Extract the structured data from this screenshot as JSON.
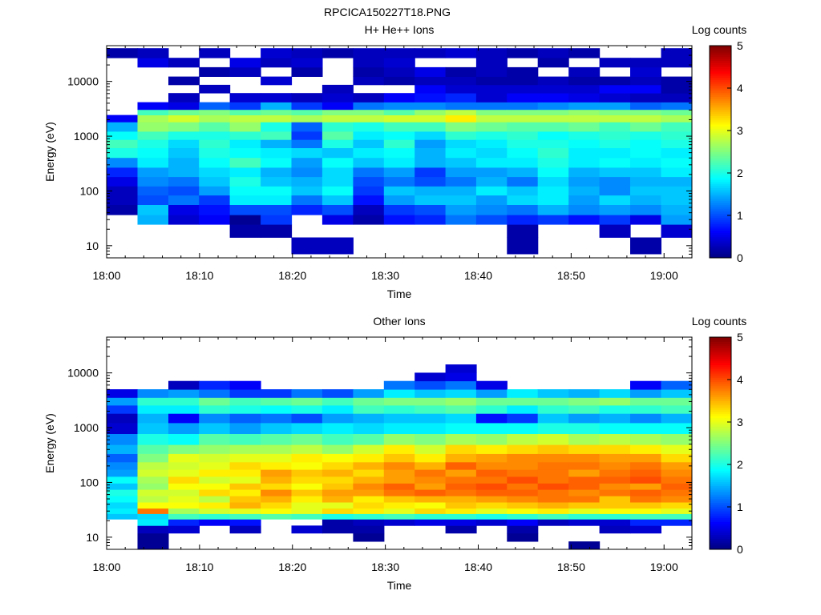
{
  "figure_title": "RPCICA150227T18.PNG",
  "chart_data": [
    {
      "type": "heatmap",
      "title": "H+ He++ Ions",
      "xlabel": "Time",
      "ylabel": "Energy (eV)",
      "x_ticks": [
        "18:00",
        "18:10",
        "18:20",
        "18:30",
        "18:40",
        "18:50",
        "19:00"
      ],
      "y_ticks": [
        "10",
        "100",
        "1000",
        "10000"
      ],
      "yscale": "log",
      "ylim": [
        6,
        45000
      ],
      "xlim": [
        "18:00",
        "19:03"
      ],
      "colorbar": {
        "label": "Log counts",
        "ticks": [
          "0",
          "1",
          "2",
          "3",
          "4",
          "5"
        ],
        "range": [
          0,
          5
        ]
      },
      "times": [
        "18:01:40",
        "18:04:59",
        "18:08:18",
        "18:11:36",
        "18:14:55",
        "18:18:14",
        "18:21:33",
        "18:24:52",
        "18:28:11",
        "18:31:30",
        "18:34:49",
        "18:38:08",
        "18:41:26",
        "18:44:45",
        "18:48:04",
        "18:51:23",
        "18:54:42",
        "18:58:01",
        "19:01:20"
      ],
      "energy_bands_eV": [
        10,
        20,
        30,
        45,
        70,
        100,
        150,
        220,
        330,
        500,
        750,
        1000,
        1500,
        2200,
        2700,
        3500,
        5000,
        7500,
        10000,
        15000,
        22000,
        33000
      ],
      "log_counts": [
        [
          null,
          null,
          null,
          0.2,
          0.3,
          0.3,
          0.5,
          0.8,
          1.3,
          2.0,
          2.2,
          1.9,
          1.5,
          0.6,
          null,
          null,
          null,
          null,
          null,
          null,
          null,
          0.2
        ],
        [
          null,
          null,
          1.5,
          1.6,
          1.0,
          1.1,
          1.3,
          1.4,
          1.8,
          1.9,
          2.0,
          2.2,
          2.6,
          2.7,
          2.2,
          0.6,
          null,
          null,
          null,
          null,
          0.5,
          0.3
        ],
        [
          null,
          null,
          0.4,
          0.5,
          1.2,
          1.0,
          1.2,
          1.5,
          1.5,
          1.6,
          1.7,
          2.0,
          2.5,
          2.9,
          2.4,
          0.5,
          0.3,
          null,
          0.2,
          null,
          0.3,
          null
        ],
        [
          null,
          null,
          0.6,
          0.7,
          0.9,
          1.4,
          1.6,
          1.7,
          1.9,
          2.0,
          2.1,
          2.0,
          2.3,
          2.7,
          2.5,
          1.1,
          null,
          0.3,
          null,
          0.2,
          null,
          0.3
        ],
        [
          null,
          0.2,
          0.1,
          1.0,
          1.8,
          1.9,
          2.0,
          1.8,
          2.2,
          1.9,
          1.8,
          2.1,
          2.6,
          2.8,
          2.3,
          0.9,
          0.4,
          null,
          null,
          0.3,
          0.5,
          null
        ],
        [
          null,
          0.2,
          0.9,
          1.0,
          1.8,
          1.9,
          1.6,
          1.5,
          1.9,
          1.8,
          1.5,
          2.2,
          2.0,
          2.8,
          2.4,
          1.5,
          0.4,
          null,
          0.4,
          null,
          0.3,
          0.4
        ],
        [
          0.3,
          null,
          null,
          0.8,
          1.2,
          1.6,
          1.5,
          1.3,
          1.4,
          1.7,
          1.2,
          0.9,
          1.1,
          2.7,
          2.3,
          0.9,
          0.3,
          null,
          null,
          0.2,
          0.4,
          0.3
        ],
        [
          0.3,
          null,
          0.5,
          1.0,
          1.6,
          1.9,
          1.7,
          1.7,
          1.9,
          1.6,
          2.0,
          2.3,
          2.1,
          2.8,
          2.5,
          0.6,
          0.4,
          0.3,
          null,
          null,
          null,
          0.2
        ],
        [
          null,
          null,
          0.2,
          0.3,
          0.7,
          0.9,
          1.0,
          1.2,
          1.6,
          1.8,
          1.6,
          1.8,
          2.0,
          2.8,
          2.5,
          1.2,
          0.3,
          null,
          0.3,
          0.2,
          0.3,
          0.3
        ],
        [
          null,
          null,
          0.7,
          0.9,
          1.4,
          1.6,
          1.2,
          1.4,
          1.8,
          1.9,
          2.1,
          1.9,
          2.2,
          2.9,
          2.3,
          1.3,
          0.6,
          null,
          0.2,
          0.3,
          0.4,
          0.3
        ],
        [
          null,
          null,
          0.8,
          1.0,
          1.6,
          1.5,
          1.0,
          0.9,
          1.5,
          1.5,
          1.4,
          1.7,
          2.2,
          2.9,
          2.6,
          1.3,
          0.7,
          0.6,
          0.3,
          0.5,
          null,
          0.3
        ],
        [
          null,
          null,
          1.2,
          1.4,
          1.6,
          1.5,
          1.2,
          1.4,
          1.6,
          1.8,
          1.7,
          2.1,
          2.5,
          3.2,
          2.8,
          1.2,
          0.8,
          0.4,
          0.3,
          0.2,
          null,
          0.4
        ],
        [
          null,
          null,
          1.0,
          1.3,
          1.4,
          1.8,
          1.5,
          1.4,
          1.8,
          1.7,
          1.8,
          2.0,
          2.4,
          2.8,
          2.5,
          1.2,
          0.4,
          0.4,
          0.2,
          0.3,
          0.3,
          0.3
        ],
        [
          0.2,
          0.2,
          0.8,
          1.2,
          1.7,
          1.6,
          1.2,
          1.5,
          1.8,
          1.9,
          2.0,
          2.1,
          2.3,
          2.8,
          2.5,
          1.2,
          0.6,
          0.4,
          0.2,
          0.2,
          null,
          0.2
        ],
        [
          null,
          null,
          0.9,
          1.5,
          1.8,
          1.8,
          1.7,
          1.9,
          2.0,
          2.1,
          2.0,
          1.9,
          2.3,
          2.8,
          2.5,
          1.3,
          0.6,
          0.4,
          0.3,
          null,
          0.2,
          0.3
        ],
        [
          null,
          null,
          0.7,
          1.3,
          1.4,
          1.5,
          1.4,
          1.5,
          1.8,
          1.8,
          1.9,
          2.0,
          2.4,
          2.8,
          2.6,
          1.4,
          0.5,
          0.4,
          0.2,
          0.3,
          null,
          0.2
        ],
        [
          null,
          0.3,
          0.9,
          1.4,
          1.7,
          1.3,
          1.3,
          1.6,
          1.9,
          1.8,
          2.0,
          2.1,
          2.2,
          2.8,
          2.5,
          1.4,
          0.4,
          0.6,
          0.2,
          null,
          0.3,
          null
        ],
        [
          0.2,
          null,
          0.5,
          1.3,
          1.5,
          1.6,
          1.5,
          1.6,
          1.8,
          1.9,
          1.9,
          2.0,
          2.4,
          2.8,
          2.5,
          1.1,
          0.3,
          0.6,
          0.3,
          0.4,
          0.3,
          null
        ],
        [
          null,
          0.4,
          1.4,
          1.5,
          1.6,
          1.6,
          1.5,
          1.8,
          1.9,
          1.8,
          2.0,
          2.1,
          2.2,
          2.7,
          2.4,
          1.2,
          0.3,
          0.2,
          0.2,
          null,
          0.3,
          0.3
        ]
      ]
    },
    {
      "type": "heatmap",
      "title": "Other Ions",
      "xlabel": "Time",
      "ylabel": "Energy (eV)",
      "x_ticks": [
        "18:00",
        "18:10",
        "18:20",
        "18:30",
        "18:40",
        "18:50",
        "19:00"
      ],
      "y_ticks": [
        "10",
        "100",
        "1000",
        "10000"
      ],
      "yscale": "log",
      "ylim": [
        6,
        45000
      ],
      "xlim": [
        "18:00",
        "19:03"
      ],
      "colorbar": {
        "label": "Log counts",
        "ticks": [
          "0",
          "1",
          "2",
          "3",
          "4",
          "5"
        ],
        "range": [
          0,
          5
        ]
      },
      "times": [
        "18:01:40",
        "18:04:59",
        "18:08:18",
        "18:11:36",
        "18:14:55",
        "18:18:14",
        "18:21:33",
        "18:24:52",
        "18:28:11",
        "18:31:30",
        "18:34:49",
        "18:38:08",
        "18:41:26",
        "18:44:45",
        "18:48:04",
        "18:51:23",
        "18:54:42",
        "18:58:01",
        "19:01:20"
      ],
      "energy_bands_eV": [
        7,
        10,
        14,
        19,
        24,
        30,
        38,
        50,
        65,
        85,
        110,
        150,
        200,
        280,
        400,
        600,
        1000,
        1500,
        2200,
        3000,
        4200,
        6000,
        8500,
        12000
      ],
      "log_counts": [
        [
          null,
          null,
          null,
          null,
          1.6,
          1.8,
          1.7,
          1.9,
          2.0,
          1.6,
          1.9,
          1.4,
          1.3,
          1.1,
          1.5,
          1.3,
          0.4,
          0.3,
          0.9,
          1.4,
          0.5,
          null,
          null,
          null
        ],
        [
          0.1,
          0.1,
          0.3,
          1.8,
          1.7,
          3.8,
          3.1,
          2.8,
          2.9,
          2.6,
          2.7,
          2.9,
          2.8,
          2.5,
          2.3,
          2.0,
          1.6,
          1.5,
          1.8,
          2.1,
          1.3,
          null,
          null,
          null
        ],
        [
          null,
          null,
          0.4,
          0.8,
          2.2,
          2.7,
          3.1,
          3.0,
          2.9,
          3.1,
          3.3,
          3.0,
          2.9,
          3.0,
          2.5,
          1.9,
          1.4,
          0.6,
          1.8,
          2.1,
          1.4,
          0.3,
          null,
          null
        ],
        [
          null,
          null,
          null,
          0.6,
          2.1,
          2.9,
          3.2,
          2.8,
          3.3,
          3.1,
          2.9,
          3.2,
          3.0,
          2.9,
          2.6,
          2.3,
          1.6,
          1.3,
          2.1,
          2.4,
          1.2,
          0.8,
          null,
          null
        ],
        [
          null,
          null,
          0.3,
          0.7,
          2.2,
          3.0,
          3.5,
          3.4,
          3.2,
          3.4,
          3.0,
          3.2,
          3.3,
          3.0,
          2.7,
          2.2,
          1.4,
          1.1,
          2.0,
          2.2,
          0.9,
          0.6,
          null,
          null
        ],
        [
          null,
          null,
          null,
          null,
          2.3,
          3.1,
          3.3,
          3.5,
          3.7,
          3.3,
          3.5,
          3.6,
          3.2,
          3.0,
          2.7,
          2.3,
          1.6,
          1.2,
          1.9,
          2.3,
          0.9,
          null,
          null,
          null
        ],
        [
          null,
          null,
          0.4,
          null,
          2.2,
          3.0,
          3.0,
          3.2,
          3.4,
          3.1,
          3.3,
          3.4,
          3.1,
          3.2,
          2.8,
          2.4,
          1.7,
          1.0,
          2.0,
          2.4,
          1.2,
          null,
          null,
          null
        ],
        [
          null,
          null,
          0.2,
          0.2,
          2.0,
          3.3,
          3.0,
          3.5,
          3.6,
          3.4,
          3.3,
          3.5,
          3.3,
          3.1,
          2.6,
          2.2,
          1.8,
          1.4,
          1.8,
          2.2,
          1.0,
          null,
          null,
          null
        ],
        [
          null,
          0.1,
          0.2,
          0.3,
          2.1,
          3.2,
          3.3,
          3.2,
          3.6,
          3.7,
          3.5,
          3.3,
          3.5,
          3.2,
          2.9,
          2.3,
          1.7,
          1.5,
          2.2,
          2.4,
          1.4,
          null,
          null,
          null
        ],
        [
          null,
          null,
          null,
          0.4,
          2.2,
          3.0,
          3.2,
          3.4,
          3.8,
          3.9,
          3.6,
          3.6,
          3.7,
          3.4,
          3.2,
          2.6,
          1.8,
          1.6,
          2.1,
          2.5,
          1.8,
          1.2,
          null,
          null
        ],
        [
          null,
          null,
          null,
          0.5,
          2.1,
          3.3,
          3.1,
          3.5,
          3.9,
          3.6,
          3.7,
          3.8,
          3.5,
          3.2,
          2.9,
          2.5,
          1.8,
          1.6,
          2.2,
          2.5,
          1.6,
          1.0,
          0.4,
          null
        ],
        [
          null,
          null,
          0.2,
          0.5,
          2.1,
          3.2,
          3.4,
          3.5,
          3.8,
          3.9,
          3.8,
          3.6,
          3.9,
          3.5,
          3.3,
          2.7,
          1.9,
          1.7,
          2.3,
          2.6,
          1.7,
          1.2,
          0.5,
          0.4
        ],
        [
          null,
          null,
          null,
          0.4,
          2.0,
          3.0,
          3.3,
          3.6,
          3.9,
          4.0,
          3.8,
          3.9,
          3.7,
          3.6,
          3.2,
          2.6,
          1.9,
          0.7,
          2.1,
          2.4,
          1.4,
          0.5,
          null,
          null
        ],
        [
          null,
          0.1,
          0.2,
          0.6,
          2.1,
          3.1,
          3.4,
          3.7,
          3.9,
          3.8,
          4.0,
          3.8,
          3.7,
          3.7,
          3.3,
          2.8,
          1.9,
          0.9,
          1.8,
          2.4,
          1.8,
          null,
          null,
          null
        ],
        [
          null,
          null,
          null,
          0.3,
          2.2,
          3.2,
          3.5,
          3.8,
          3.8,
          4.0,
          3.8,
          3.8,
          3.8,
          3.7,
          3.4,
          2.9,
          2.0,
          1.6,
          2.1,
          2.4,
          1.6,
          null,
          null,
          null
        ],
        [
          0.1,
          null,
          null,
          0.4,
          2.1,
          3.0,
          3.4,
          3.8,
          3.7,
          3.9,
          3.9,
          3.6,
          3.8,
          3.7,
          3.3,
          2.7,
          2.0,
          1.4,
          2.2,
          2.5,
          1.5,
          null,
          null,
          null
        ],
        [
          null,
          null,
          0.3,
          0.4,
          2.1,
          3.1,
          3.4,
          3.4,
          3.8,
          3.7,
          3.9,
          3.8,
          3.7,
          3.6,
          3.3,
          2.8,
          1.9,
          1.5,
          2.0,
          2.6,
          1.7,
          null,
          null,
          null
        ],
        [
          null,
          null,
          0.4,
          0.8,
          2.2,
          3.1,
          3.4,
          3.8,
          3.9,
          3.6,
          4.0,
          3.9,
          3.8,
          3.6,
          3.2,
          2.7,
          1.9,
          1.3,
          2.1,
          2.4,
          1.4,
          0.6,
          null,
          null
        ],
        [
          null,
          null,
          null,
          0.8,
          2.2,
          3.0,
          3.3,
          3.7,
          3.8,
          3.9,
          3.8,
          3.7,
          3.6,
          3.3,
          3.0,
          2.6,
          1.9,
          1.5,
          2.2,
          2.4,
          1.6,
          1.1,
          null,
          null
        ]
      ]
    }
  ]
}
